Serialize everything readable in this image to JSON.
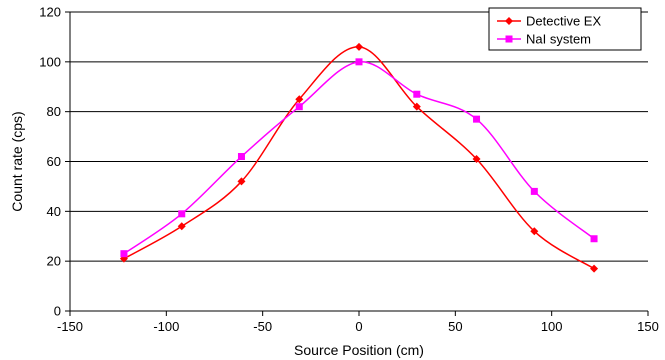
{
  "chart_data": {
    "type": "line",
    "xlabel": "Source Position (cm)",
    "ylabel": "Count rate (cps)",
    "xlim": [
      -150,
      150
    ],
    "ylim": [
      0,
      120
    ],
    "xticks": [
      -150,
      -100,
      -50,
      0,
      50,
      100,
      150
    ],
    "yticks": [
      0,
      20,
      40,
      60,
      80,
      100,
      120
    ],
    "grid": "horizontal",
    "legend_position": "top-right",
    "smooth": true,
    "series": [
      {
        "name": "Detective EX",
        "color": "#ff0000",
        "marker": "diamond",
        "x": [
          -122,
          -92,
          -61,
          -31,
          0,
          30,
          61,
          91,
          122
        ],
        "y": [
          21,
          34,
          52,
          85,
          106,
          82,
          61,
          32,
          17
        ]
      },
      {
        "name": "NaI system",
        "color": "#ff00ff",
        "marker": "square",
        "x": [
          -122,
          -92,
          -61,
          -31,
          0,
          30,
          61,
          91,
          122
        ],
        "y": [
          23,
          39,
          62,
          82,
          100,
          87,
          77,
          48,
          29
        ]
      }
    ]
  }
}
